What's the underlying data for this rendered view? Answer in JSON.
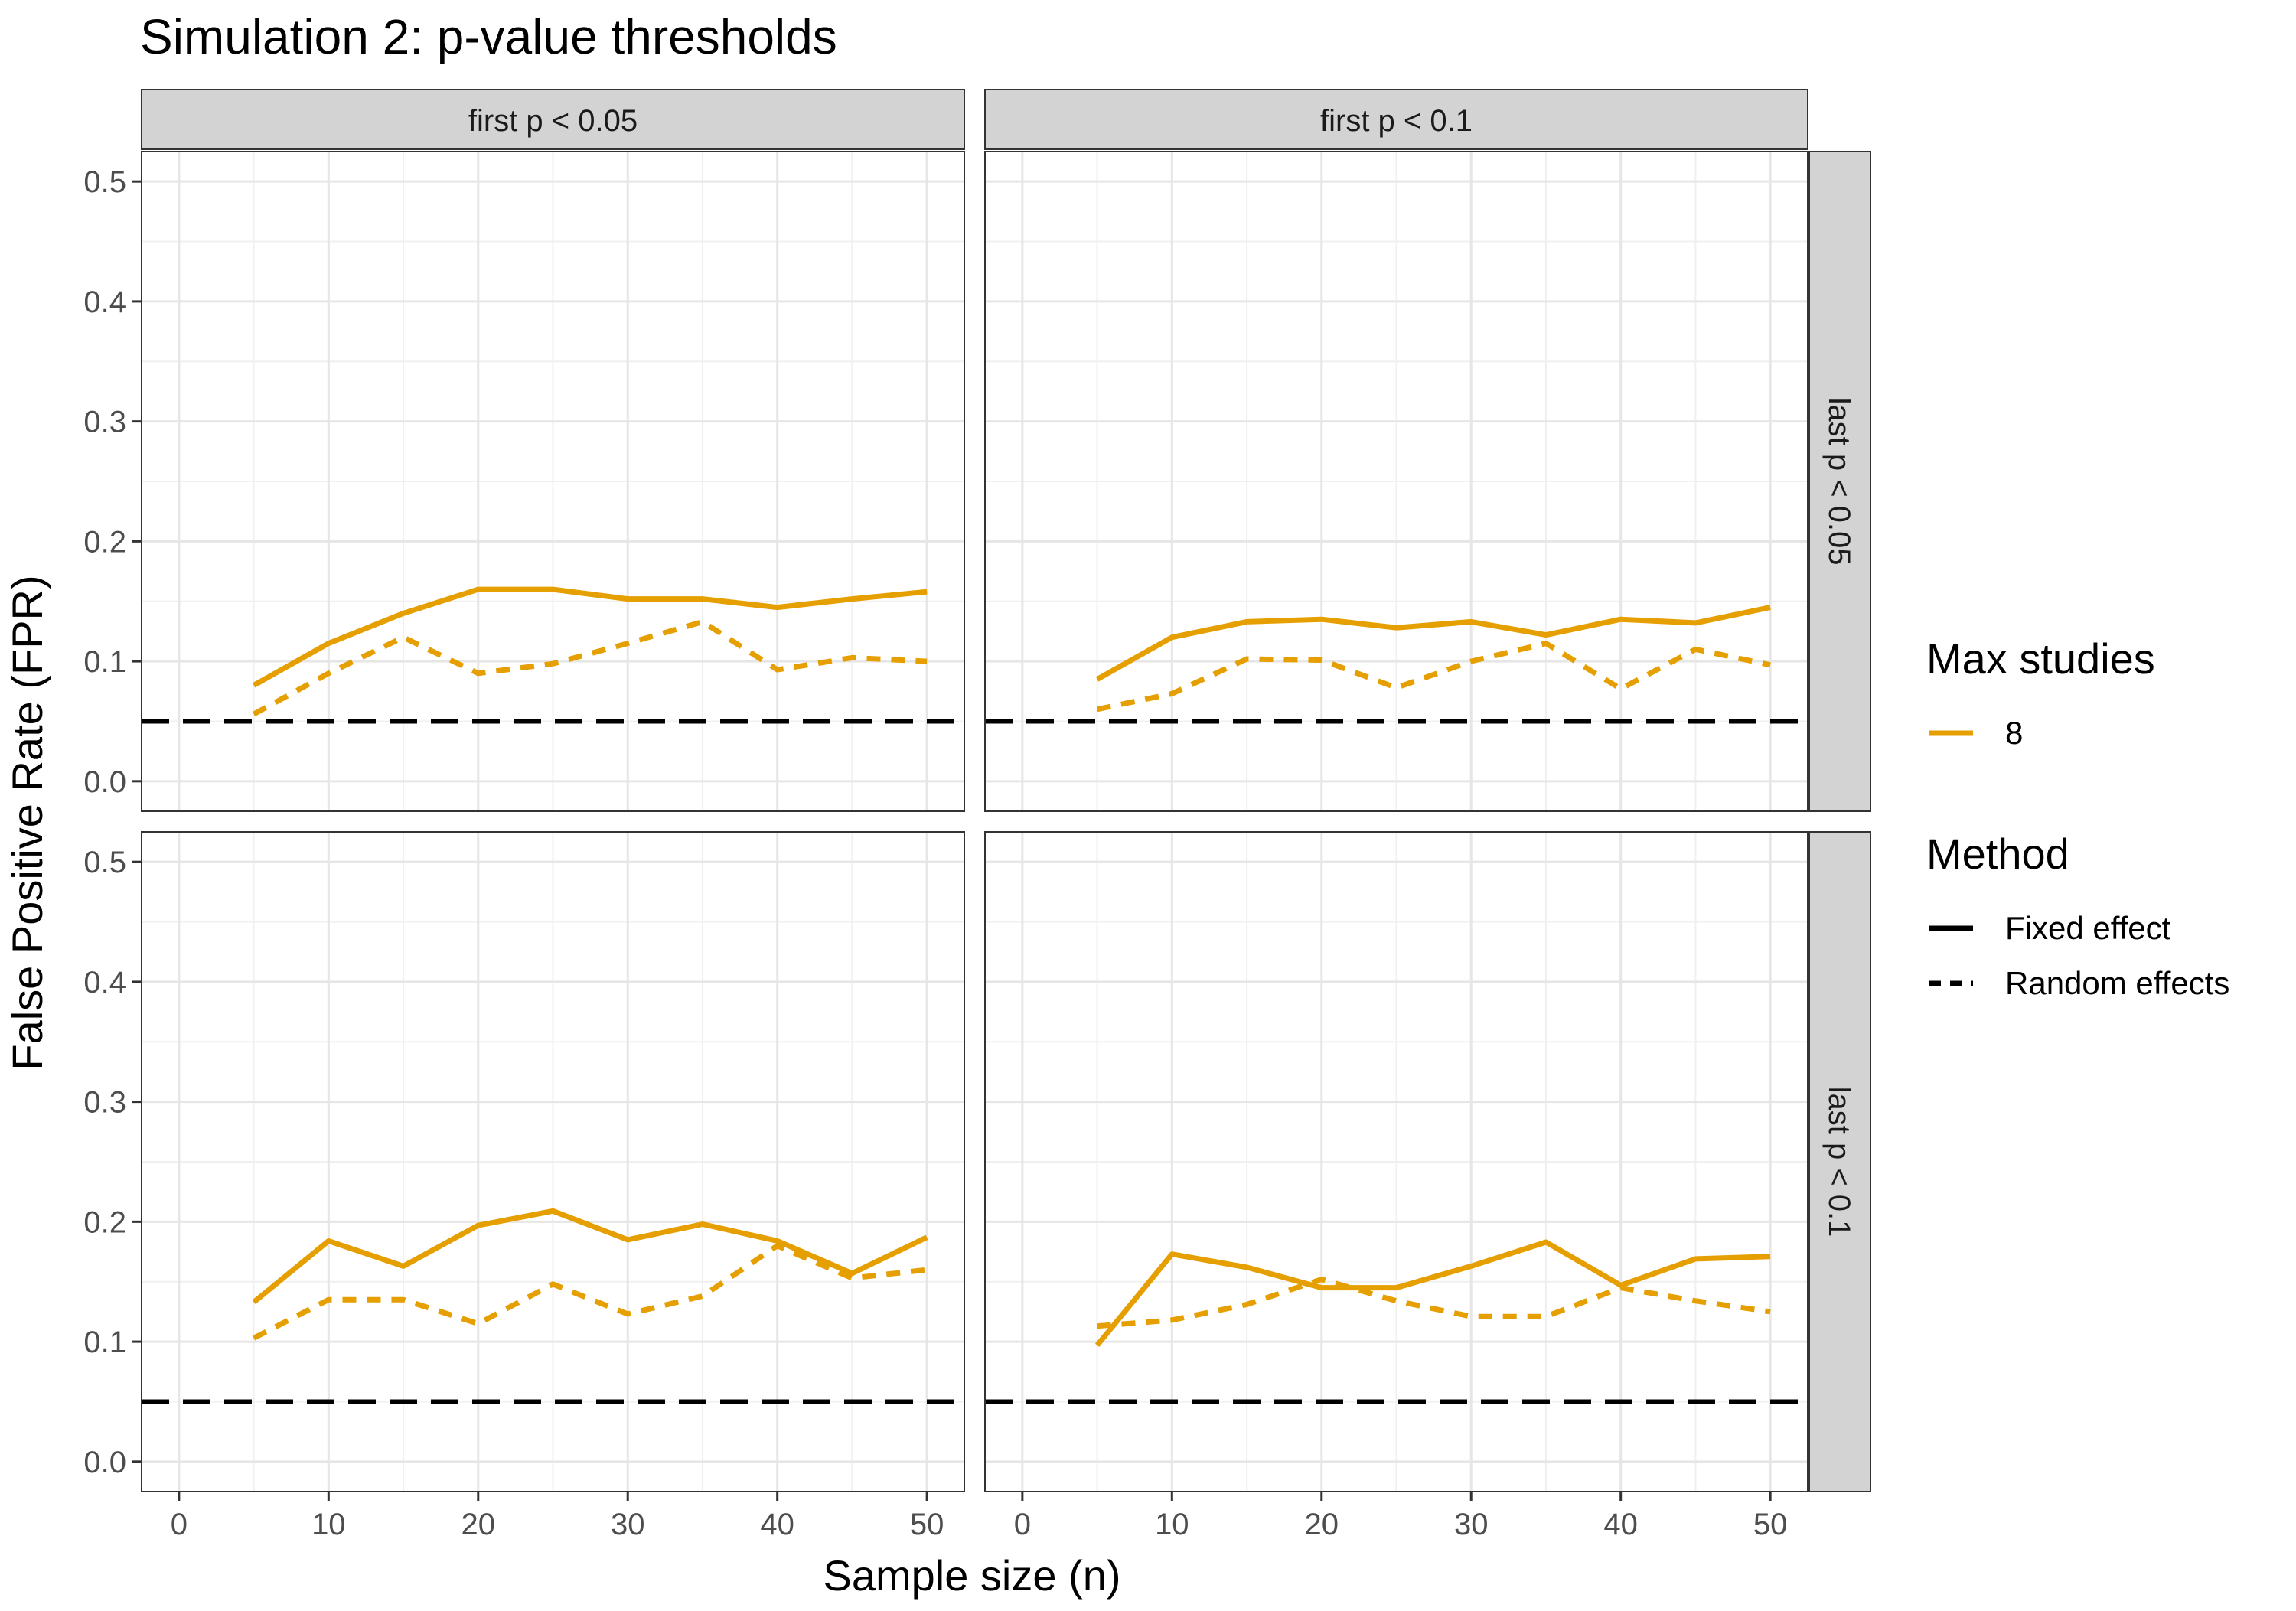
{
  "chart_data": {
    "type": "line",
    "title": "Simulation 2: p-value thresholds",
    "xlabel": "Sample size (n)",
    "ylabel": "False Positive Rate (FPR)",
    "xlim": [
      -2.5,
      52.5
    ],
    "ylim": [
      -0.025,
      0.525
    ],
    "x_ticks": [
      0,
      10,
      20,
      30,
      40,
      50
    ],
    "y_ticks": [
      0.0,
      0.1,
      0.2,
      0.3,
      0.4,
      0.5
    ],
    "y_tick_labels": [
      "0.0",
      "0.1",
      "0.2",
      "0.3",
      "0.4",
      "0.5"
    ],
    "grid": true,
    "legend_position": "right",
    "reference_line": {
      "y": 0.05,
      "style": "dashed",
      "color": "#000000"
    },
    "col_facets": [
      "first p < 0.05",
      "first p < 0.1"
    ],
    "row_facets": [
      "last p < 0.05",
      "last p < 0.1"
    ],
    "legends": {
      "max_studies": {
        "title": "Max studies",
        "items": [
          {
            "label": "8",
            "color": "#E69F00"
          }
        ]
      },
      "method": {
        "title": "Method",
        "items": [
          {
            "label": "Fixed effect",
            "style": "solid"
          },
          {
            "label": "Random effects",
            "style": "dashed"
          }
        ]
      }
    },
    "x": [
      5,
      10,
      15,
      20,
      25,
      30,
      35,
      40,
      45,
      50
    ],
    "panels": [
      {
        "row": 0,
        "col": 0,
        "series": [
          {
            "name": "Fixed effect",
            "max_studies": "8",
            "values": [
              0.08,
              0.115,
              0.14,
              0.16,
              0.16,
              0.152,
              0.152,
              0.145,
              0.152,
              0.158
            ]
          },
          {
            "name": "Random effects",
            "max_studies": "8",
            "values": [
              0.056,
              0.09,
              0.12,
              0.09,
              0.098,
              0.115,
              0.133,
              0.093,
              0.103,
              0.1
            ]
          }
        ]
      },
      {
        "row": 0,
        "col": 1,
        "series": [
          {
            "name": "Fixed effect",
            "max_studies": "8",
            "values": [
              0.085,
              0.12,
              0.133,
              0.135,
              0.128,
              0.133,
              0.122,
              0.135,
              0.132,
              0.145
            ]
          },
          {
            "name": "Random effects",
            "max_studies": "8",
            "values": [
              0.06,
              0.073,
              0.102,
              0.101,
              0.078,
              0.1,
              0.115,
              0.077,
              0.11,
              0.097
            ]
          }
        ]
      },
      {
        "row": 1,
        "col": 0,
        "series": [
          {
            "name": "Fixed effect",
            "max_studies": "8",
            "values": [
              0.133,
              0.184,
              0.163,
              0.197,
              0.209,
              0.185,
              0.198,
              0.184,
              0.157,
              0.187
            ]
          },
          {
            "name": "Random effects",
            "max_studies": "8",
            "values": [
              0.103,
              0.135,
              0.135,
              0.115,
              0.148,
              0.123,
              0.138,
              0.18,
              0.153,
              0.16
            ]
          }
        ]
      },
      {
        "row": 1,
        "col": 1,
        "series": [
          {
            "name": "Fixed effect",
            "max_studies": "8",
            "values": [
              0.097,
              0.173,
              0.162,
              0.145,
              0.145,
              0.163,
              0.183,
              0.147,
              0.169,
              0.171
            ]
          },
          {
            "name": "Random effects",
            "max_studies": "8",
            "values": [
              0.113,
              0.118,
              0.131,
              0.152,
              0.134,
              0.121,
              0.121,
              0.145,
              0.134,
              0.125
            ]
          }
        ]
      }
    ]
  }
}
